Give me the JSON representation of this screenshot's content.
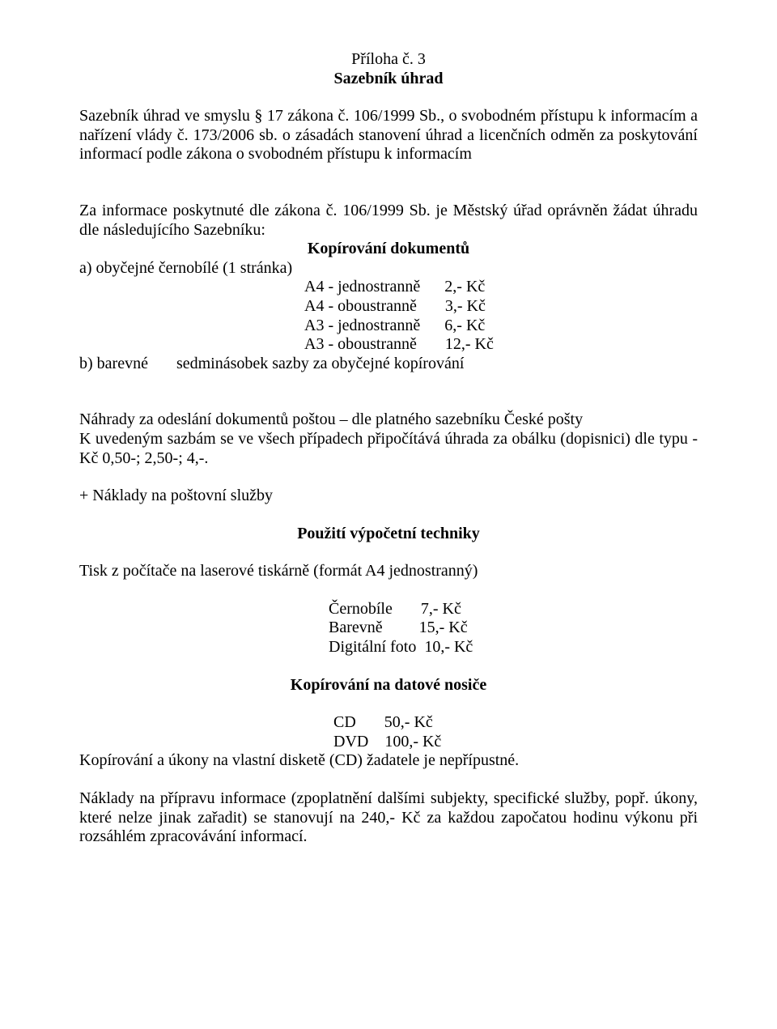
{
  "header": {
    "line1": "Příloha č. 3",
    "line2": "Sazebník úhrad"
  },
  "intro": {
    "p1": "Sazebník úhrad ve smyslu § 17 zákona č. 106/1999 Sb., o svobodném přístupu k informacím a nařízení vlády č. 173/2006 sb. o zásadách stanovení úhrad a licenčních odměn za poskytování informací podle zákona o svobodném přístupu k informacím"
  },
  "sazebnik": {
    "lead": "Za informace poskytnuté dle zákona č. 106/1999 Sb. je Městský úřad oprávněn žádat úhradu dle následujícího Sazebníku:",
    "kop_title": "Kopírování dokumentů",
    "a_label": "a) obyčejné černobílé (1 stránka)",
    "rows": {
      "r1l": "A4 - jednostranně",
      "r1r": "2,- Kč",
      "r2l": "A4 - oboustranně",
      "r2r": "3,- Kč",
      "r3l": "A3 - jednostranně",
      "r3r": "6,- Kč",
      "r4l": "A3 - oboustranně",
      "r4r": "12,- Kč"
    },
    "b_line": "b) barevné       sedminásobek sazby za obyčejné kopírování"
  },
  "nahrady": {
    "p1": "Náhrady za odeslání dokumentů poštou – dle platného sazebníku České pošty",
    "p2": "K uvedeným sazbám se ve všech případech připočítává úhrada za obálku (dopisnici) dle typu - Kč 0,50-; 2,50-; 4,-.",
    "p3": " + Náklady na poštovní služby"
  },
  "vt": {
    "title": "Použití výpočetní techniky",
    "lead": "Tisk z počítače na laserové tiskárně (formát A4 jednostranný)",
    "rows": {
      "r1": "Černobíle       7,- Kč",
      "r2": "Barevně         15,- Kč",
      "r3": "Digitální foto  10,- Kč"
    }
  },
  "nosice": {
    "title": "Kopírování na datové nosiče",
    "rows": {
      "r1": "CD       50,- Kč",
      "r2": "DVD    100,- Kč"
    },
    "note": "Kopírování a úkony na vlastní disketě (CD) žadatele je nepřípustné."
  },
  "naklady": {
    "p": "Náklady na přípravu informace (zpoplatnění dalšími subjekty, specifické služby, popř. úkony, které nelze jinak zařadit) se stanovují na 240,- Kč za každou započatou hodinu výkonu při rozsáhlém zpracovávání informací."
  }
}
